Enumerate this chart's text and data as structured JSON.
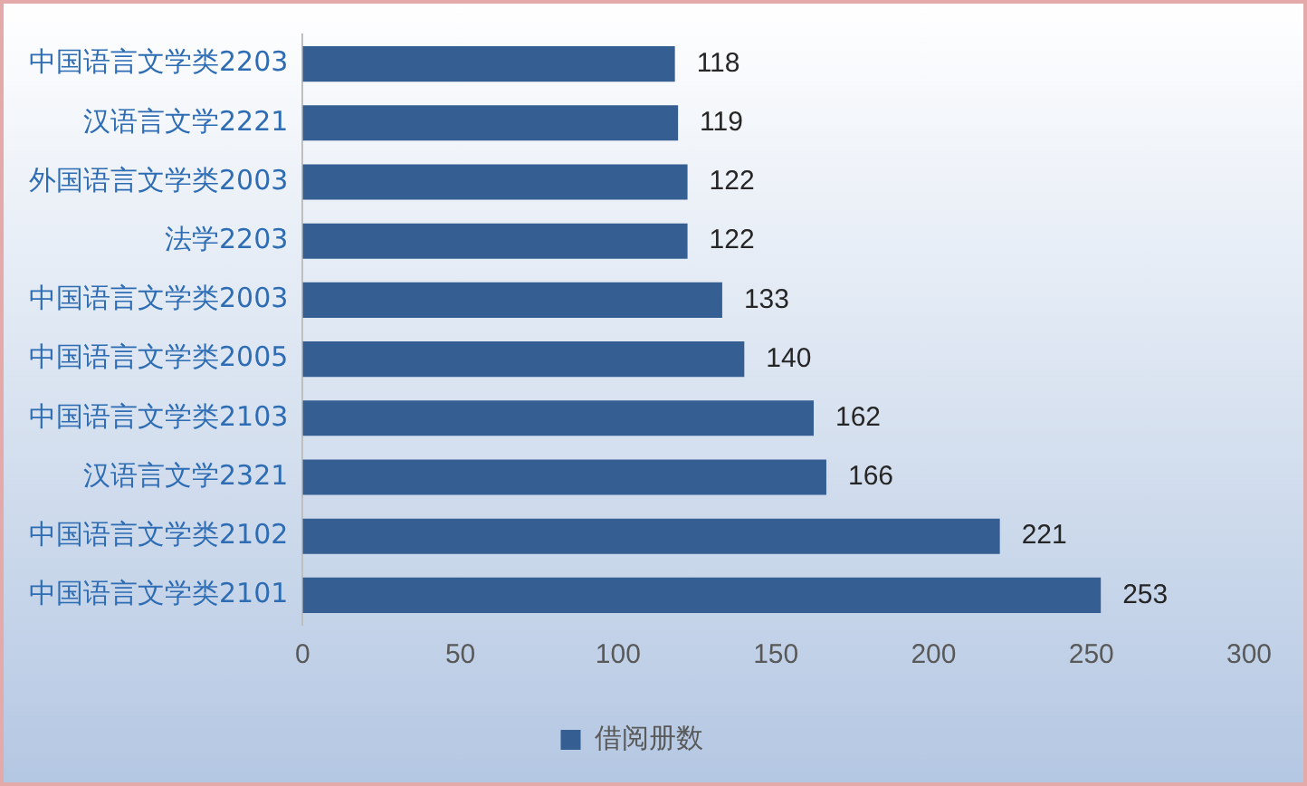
{
  "chart_data": {
    "type": "bar",
    "orientation": "horizontal",
    "categories": [
      "中国语言文学类2203",
      "汉语言文学2221",
      "外国语言文学类2003",
      "法学2203",
      "中国语言文学类2003",
      "中国语言文学类2005",
      "中国语言文学类2103",
      "汉语言文学2321",
      "中国语言文学类2102",
      "中国语言文学类2101"
    ],
    "series": [
      {
        "name": "借阅册数",
        "color": "#355e92",
        "values": [
          118,
          119,
          122,
          122,
          133,
          140,
          162,
          166,
          221,
          253
        ]
      }
    ],
    "xlim": [
      0,
      300
    ],
    "xticks": [
      0,
      50,
      100,
      150,
      200,
      250,
      300
    ],
    "grid": false,
    "legend": "bottom",
    "data_labels": true
  }
}
